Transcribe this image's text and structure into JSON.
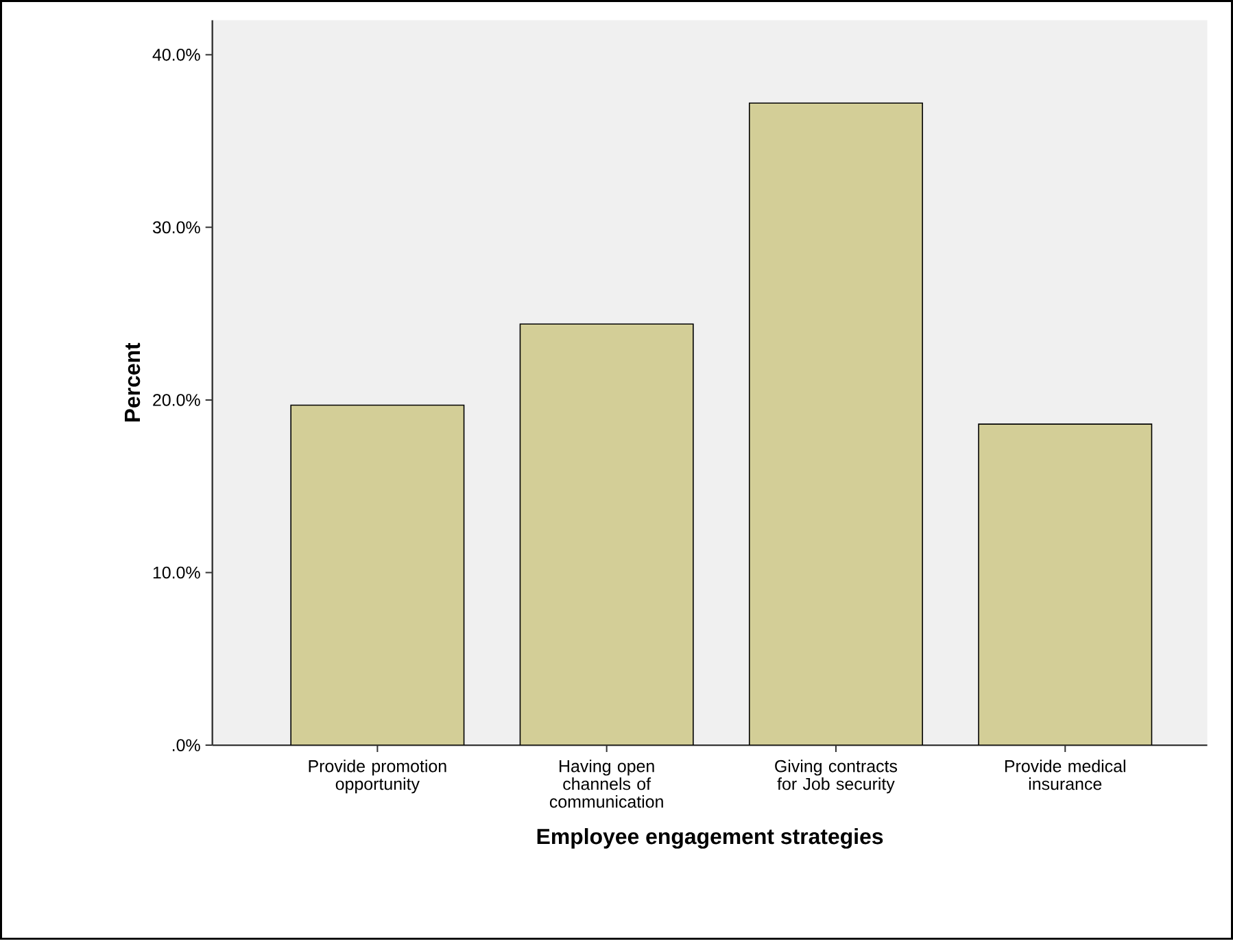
{
  "chart_data": {
    "type": "bar",
    "xlabel": "Employee engagement strategies",
    "ylabel": "Percent",
    "categories": [
      "Provide promotion opportunity",
      "Having open channels of communication",
      "Giving contracts for Job security",
      "Provide medical insurance"
    ],
    "values": [
      19.7,
      24.4,
      37.2,
      18.6
    ],
    "color": "#d3ce97",
    "ylim": [
      0,
      42
    ],
    "yticks": [
      {
        "value": 0,
        "label": ".0%"
      },
      {
        "value": 10,
        "label": "10.0%"
      },
      {
        "value": 20,
        "label": "20.0%"
      },
      {
        "value": 30,
        "label": "30.0%"
      },
      {
        "value": 40,
        "label": "40.0%"
      }
    ],
    "grid": false
  }
}
